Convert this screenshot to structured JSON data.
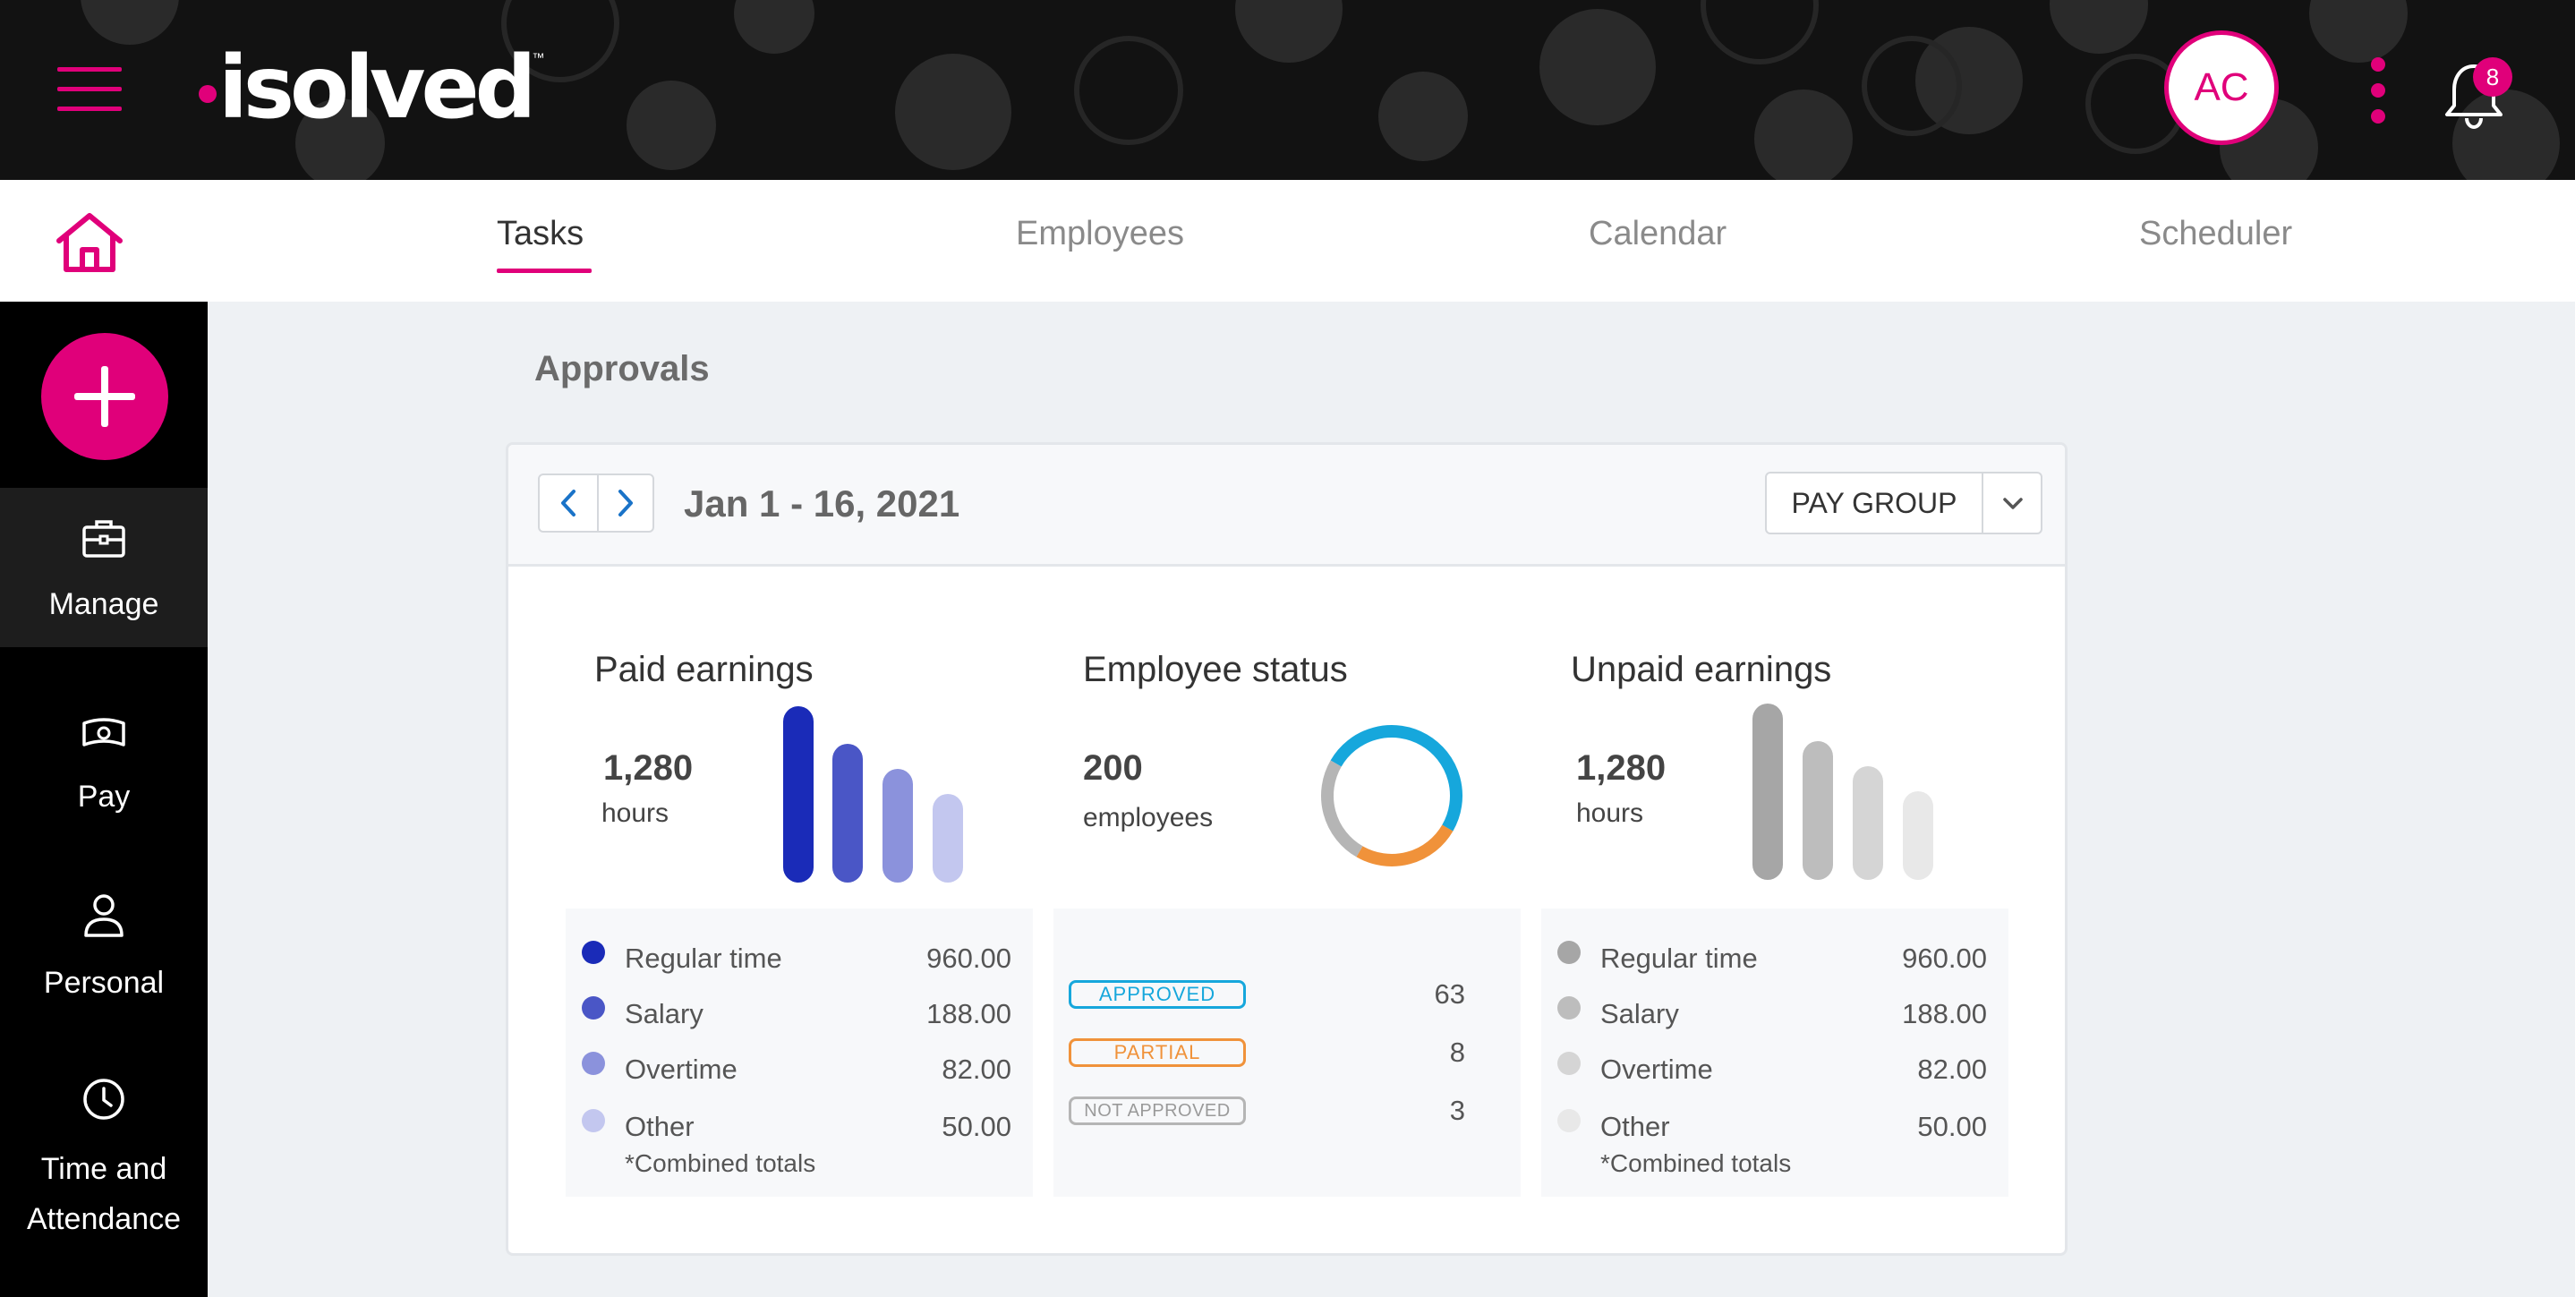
{
  "header": {
    "logo_text": "isolved",
    "logo_tm": "™",
    "avatar_initials": "AC",
    "notification_count": "8"
  },
  "nav": {
    "tabs": [
      {
        "label": "Tasks",
        "active": true
      },
      {
        "label": "Employees",
        "active": false
      },
      {
        "label": "Calendar",
        "active": false
      },
      {
        "label": "Scheduler",
        "active": false
      }
    ]
  },
  "sidebar": {
    "items": [
      {
        "label": "Manage",
        "icon": "briefcase-icon",
        "active": true
      },
      {
        "label": "Pay",
        "icon": "money-icon",
        "active": false
      },
      {
        "label": "Personal",
        "icon": "person-icon",
        "active": false
      },
      {
        "label_line1": "Time and",
        "label_line2": "Attendance",
        "icon": "clock-icon",
        "active": false
      }
    ]
  },
  "main": {
    "title": "Approvals",
    "date_range": "Jan 1 - 16, 2021",
    "pay_group_label": "PAY GROUP",
    "paid_earnings": {
      "title": "Paid earnings",
      "total": "1,280",
      "unit": "hours",
      "items": [
        {
          "name": "Regular time",
          "value": "960.00",
          "color": "#1a2bb8"
        },
        {
          "name": "Salary",
          "value": "188.00",
          "color": "#4a56c6"
        },
        {
          "name": "Overtime",
          "value": "82.00",
          "color": "#8b92dc"
        },
        {
          "name": "Other",
          "value": "50.00",
          "color": "#c3c7ef"
        }
      ],
      "note": "*Combined totals"
    },
    "employee_status": {
      "title": "Employee status",
      "total": "200",
      "unit": "employees",
      "statuses": [
        {
          "label": "APPROVED",
          "count": "63",
          "color": "#16a7dc"
        },
        {
          "label": "PARTIAL",
          "count": "8",
          "color": "#f0923a"
        },
        {
          "label": "NOT APPROVED",
          "count": "3",
          "color": "#b5b5b5"
        }
      ]
    },
    "unpaid_earnings": {
      "title": "Unpaid earnings",
      "total": "1,280",
      "unit": "hours",
      "items": [
        {
          "name": "Regular time",
          "value": "960.00",
          "color": "#a6a6a6"
        },
        {
          "name": "Salary",
          "value": "188.00",
          "color": "#bdbdbd"
        },
        {
          "name": "Overtime",
          "value": "82.00",
          "color": "#d5d5d5"
        },
        {
          "name": "Other",
          "value": "50.00",
          "color": "#e8e8e8"
        }
      ],
      "note": "*Combined totals"
    }
  },
  "colors": {
    "brand": "#e0007a",
    "header_bg": "#121212",
    "sidebar_bg": "#000000",
    "content_bg": "#eef1f4"
  }
}
